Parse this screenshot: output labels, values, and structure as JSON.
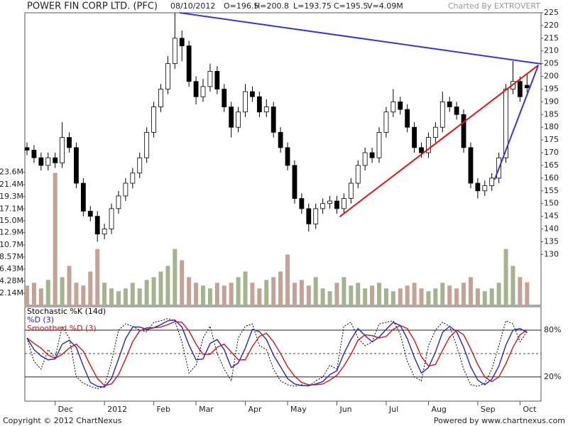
{
  "chart_data": [
    {
      "type": "candlestick",
      "title": "POWER FIN CORP LTD. (PFC)",
      "header": [
        "08/10/2012",
        "O=196.5",
        "H=200.8",
        "L=193.75",
        "C=195.5",
        "V=4.09M"
      ],
      "credit": "Charted By EXTROVERT",
      "categories": [
        null,
        null,
        null,
        null,
        "Dec",
        null,
        null,
        null,
        null,
        null,
        null,
        "2012",
        null,
        null,
        null,
        null,
        null,
        null,
        "Feb",
        null,
        null,
        null,
        null,
        null,
        "Mar",
        null,
        null,
        null,
        null,
        null,
        null,
        "Apr",
        null,
        null,
        null,
        null,
        null,
        "May",
        null,
        null,
        null,
        null,
        null,
        null,
        "Jun",
        null,
        null,
        null,
        null,
        null,
        null,
        "Jul",
        null,
        null,
        null,
        null,
        null,
        "Aug",
        null,
        null,
        null,
        null,
        null,
        null,
        "Sep",
        null,
        null,
        null,
        null,
        null,
        "Oct",
        null
      ],
      "open": [
        172,
        171,
        168,
        165,
        168,
        166,
        176,
        172,
        158,
        147,
        145,
        138,
        140,
        148,
        153,
        158,
        162,
        168,
        178,
        188,
        195,
        205,
        215,
        212,
        198,
        192,
        196,
        202,
        195,
        188,
        180,
        186,
        194,
        192,
        186,
        188,
        178,
        172,
        165,
        152,
        148,
        142,
        148,
        150,
        151,
        148,
        152,
        158,
        165,
        170,
        168,
        178,
        186,
        190,
        187,
        180,
        172,
        170,
        176,
        180,
        190,
        188,
        185,
        172,
        158,
        155,
        157,
        160,
        168,
        195,
        198,
        196.5
      ],
      "high": [
        174,
        173,
        170,
        170,
        170,
        182,
        178,
        174,
        160,
        149,
        147,
        142,
        150,
        155,
        160,
        164,
        170,
        180,
        190,
        197,
        208,
        225,
        218,
        214,
        200,
        199,
        205,
        204,
        197,
        190,
        188,
        197,
        196,
        194,
        191,
        190,
        180,
        174,
        167,
        154,
        150,
        150,
        152,
        153,
        153,
        154,
        160,
        167,
        172,
        172,
        180,
        188,
        195,
        192,
        189,
        182,
        174,
        178,
        182,
        194,
        192,
        190,
        187,
        174,
        160,
        159,
        162,
        170,
        197,
        206,
        200,
        200.8
      ],
      "low": [
        169,
        166,
        163,
        163,
        164,
        164,
        170,
        156,
        145,
        143,
        135,
        136,
        138,
        146,
        151,
        156,
        160,
        166,
        176,
        186,
        193,
        203,
        206,
        196,
        189,
        190,
        194,
        193,
        186,
        176,
        178,
        184,
        190,
        184,
        184,
        176,
        170,
        163,
        150,
        146,
        139,
        140,
        146,
        148,
        146,
        146,
        150,
        156,
        163,
        166,
        166,
        176,
        184,
        185,
        178,
        170,
        168,
        168,
        174,
        178,
        186,
        183,
        170,
        156,
        152,
        153,
        155,
        158,
        166,
        193,
        190,
        193.75
      ],
      "close": [
        171,
        168,
        165,
        168,
        166,
        176,
        172,
        158,
        147,
        145,
        138,
        140,
        148,
        153,
        158,
        162,
        168,
        178,
        188,
        195,
        205,
        215,
        212,
        198,
        192,
        196,
        202,
        195,
        188,
        180,
        186,
        194,
        192,
        186,
        188,
        178,
        172,
        165,
        152,
        148,
        142,
        148,
        150,
        151,
        148,
        152,
        158,
        165,
        170,
        168,
        178,
        186,
        190,
        187,
        180,
        172,
        170,
        176,
        180,
        190,
        188,
        185,
        172,
        158,
        155,
        157,
        160,
        168,
        195,
        198,
        192,
        195.5
      ],
      "up_color": "#ffffff",
      "down_color": "#000000",
      "volume": {
        "axis": "y2",
        "up_color": "#a3b48e",
        "down_color": "#c4a294",
        "values": [
          3.5,
          4,
          3,
          4.5,
          23.5,
          5,
          7,
          4,
          3.5,
          6,
          10,
          4,
          3,
          2.5,
          3,
          4,
          3,
          4.5,
          5,
          6,
          7,
          10,
          8,
          5,
          4,
          3.5,
          3,
          4,
          3.5,
          4,
          5,
          6,
          4,
          3,
          4.5,
          5,
          6,
          9,
          4,
          4.5,
          3.5,
          5,
          3,
          2.5,
          4,
          5,
          3.5,
          4,
          3,
          3.5,
          4,
          3,
          2.5,
          3,
          3.5,
          4,
          3,
          2.5,
          3,
          4,
          3.5,
          3,
          4,
          5,
          3,
          2.5,
          3,
          4,
          10,
          7,
          5,
          4.09
        ]
      },
      "ylim": [
        110,
        225
      ],
      "yticks": [
        130,
        135,
        140,
        145,
        150,
        155,
        160,
        165,
        170,
        175,
        180,
        185,
        190,
        195,
        200,
        205,
        210,
        215,
        220,
        225
      ],
      "y2lim": [
        0,
        51.9
      ],
      "y2ticks": [
        {
          "value": 2.14,
          "label": "2.14M"
        },
        {
          "value": 4.28,
          "label": "4.28M"
        },
        {
          "value": 6.43,
          "label": "6.43M"
        },
        {
          "value": 8.57,
          "label": "8.57M"
        },
        {
          "value": 10.7,
          "label": "10.7M"
        },
        {
          "value": 12.9,
          "label": "12.9M"
        },
        {
          "value": 15.0,
          "label": "15.0M"
        },
        {
          "value": 17.1,
          "label": "17.1M"
        },
        {
          "value": 19.3,
          "label": "19.3M"
        },
        {
          "value": 21.4,
          "label": "21.4M"
        },
        {
          "value": 23.6,
          "label": "23.6M"
        }
      ],
      "trendlines": [
        {
          "color": "#3333ee",
          "x": [
            21.7,
            73.0
          ],
          "y": [
            225,
            204.9
          ]
        },
        {
          "color": "#ee1111",
          "x": [
            44.4,
            72.6
          ],
          "y": [
            144.8,
            204.4
          ]
        },
        {
          "color": "#3333ee",
          "x": [
            66.4,
            72.6
          ],
          "y": [
            159.4,
            204.4
          ]
        }
      ]
    },
    {
      "type": "line",
      "ylim": [
        -11,
        110
      ],
      "yticks": [
        {
          "value": 20,
          "label": "20%"
        },
        {
          "value": 80,
          "label": "80%"
        }
      ],
      "series": [
        {
          "name": "Stochastic %K (14d)",
          "color": "#000000",
          "dash": true,
          "values": [
            70,
            40,
            30,
            55,
            45,
            85,
            70,
            20,
            12,
            8,
            5,
            8,
            40,
            80,
            88,
            85,
            80,
            78,
            90,
            92,
            95,
            92,
            65,
            25,
            35,
            70,
            85,
            50,
            30,
            15,
            70,
            85,
            88,
            60,
            55,
            30,
            15,
            10,
            8,
            10,
            8,
            15,
            20,
            35,
            30,
            85,
            90,
            70,
            60,
            65,
            88,
            90,
            92,
            75,
            40,
            20,
            15,
            60,
            80,
            90,
            85,
            60,
            30,
            10,
            8,
            12,
            30,
            60,
            92,
            88,
            65,
            78
          ]
        },
        {
          "name": "%D (3)",
          "color": "#2222dd",
          "dash": false,
          "values": [
            70,
            55,
            47,
            42,
            43,
            62,
            67,
            58,
            34,
            13,
            8,
            7,
            18,
            43,
            69,
            84,
            84,
            81,
            83,
            87,
            92,
            93,
            84,
            61,
            42,
            43,
            63,
            68,
            55,
            32,
            38,
            57,
            81,
            78,
            68,
            48,
            33,
            18,
            11,
            9,
            9,
            11,
            14,
            23,
            28,
            50,
            68,
            82,
            73,
            65,
            71,
            81,
            90,
            86,
            69,
            45,
            25,
            32,
            52,
            77,
            85,
            78,
            58,
            33,
            16,
            10,
            17,
            34,
            61,
            80,
            82,
            77
          ]
        },
        {
          "name": "Smoothed %D (3)",
          "color": "#dd1111",
          "dash": false,
          "values": [
            70,
            63,
            57,
            48,
            44,
            49,
            57,
            62,
            53,
            35,
            18,
            9,
            11,
            23,
            43,
            65,
            79,
            83,
            83,
            84,
            87,
            91,
            90,
            79,
            62,
            49,
            49,
            58,
            62,
            52,
            42,
            42,
            59,
            72,
            76,
            65,
            50,
            33,
            21,
            13,
            10,
            10,
            11,
            16,
            22,
            34,
            49,
            67,
            74,
            73,
            70,
            72,
            81,
            86,
            82,
            67,
            46,
            34,
            36,
            54,
            71,
            80,
            74,
            56,
            36,
            20,
            14,
            20,
            37,
            58,
            74,
            80
          ]
        }
      ]
    }
  ],
  "footer": {
    "copyright": "Copyright © 2012 ChartNexus",
    "powered": "Powered by www.chartnexus.com"
  }
}
